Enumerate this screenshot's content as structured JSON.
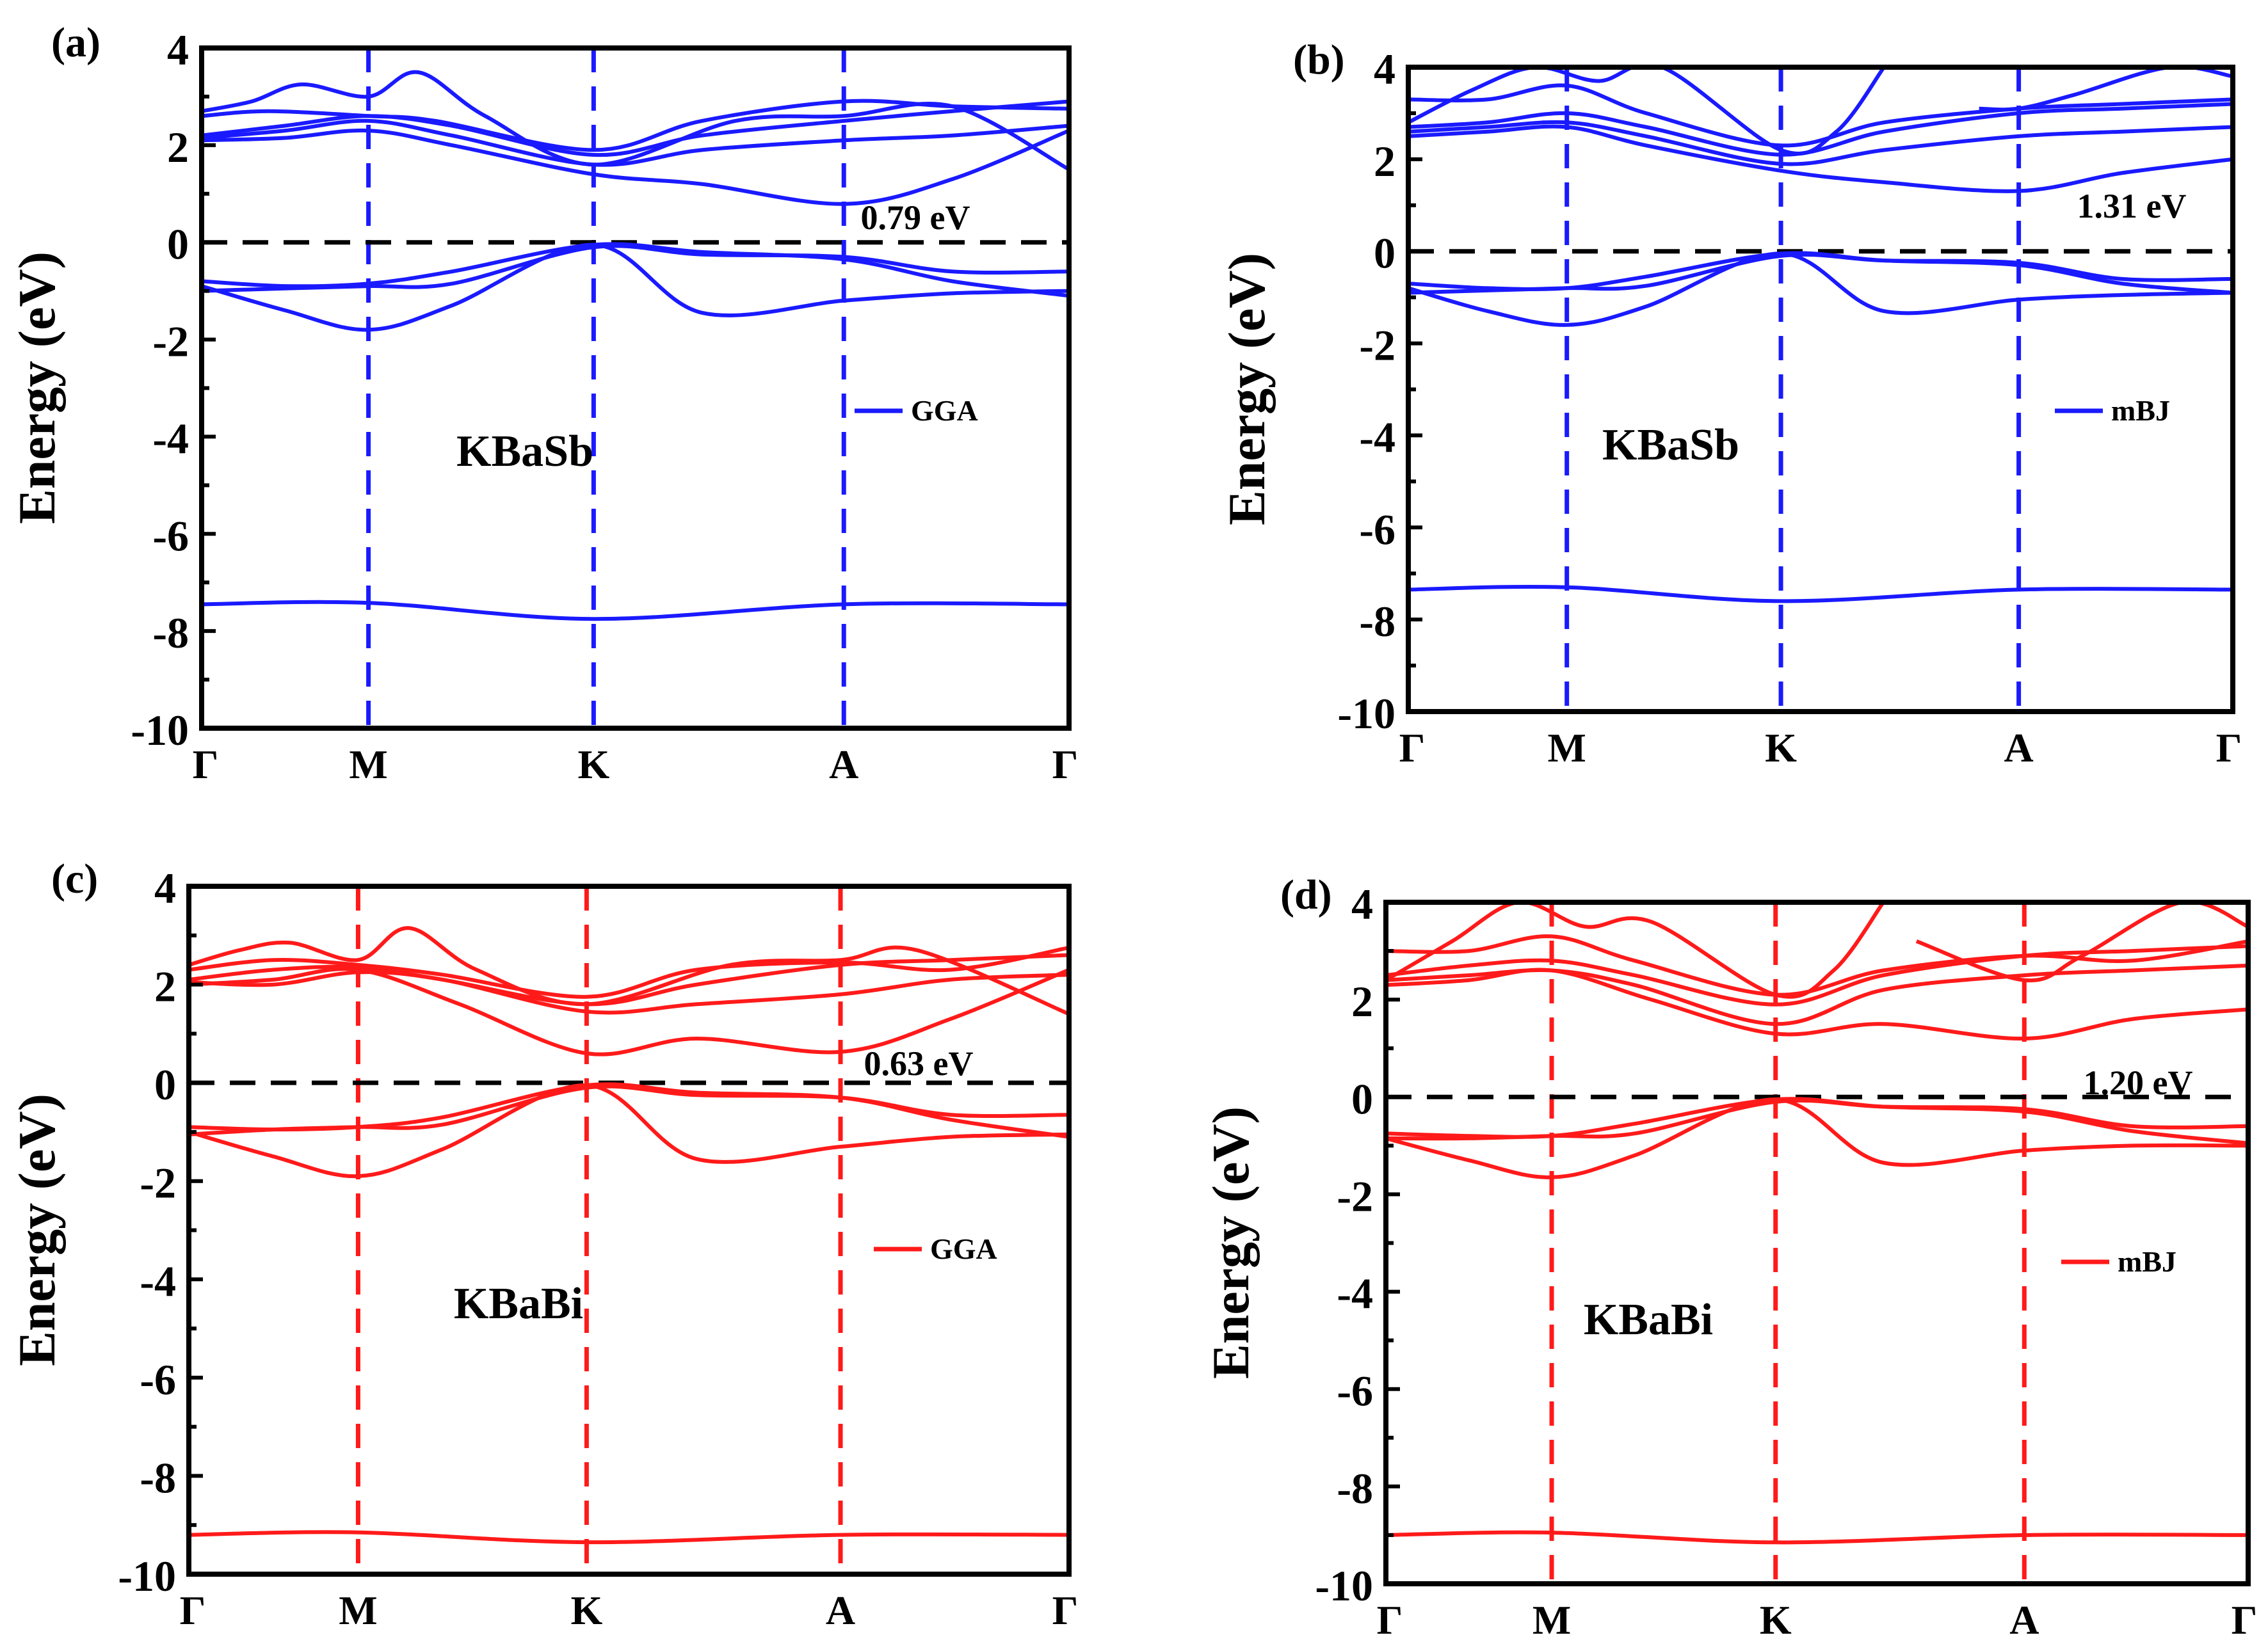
{
  "figure": {
    "description_free": true
  },
  "chart_data": [
    {
      "panel_label": "(a)",
      "type": "line",
      "material": "KBaSb",
      "method": "GGA",
      "gap_label": "0.79 eV",
      "ylabel": "Energy (eV)",
      "xlabel": "",
      "color": "#1a1aff",
      "ylim": [
        -10,
        4
      ],
      "yticks": [
        "4",
        "2",
        "0",
        "-2",
        "-4",
        "-6",
        "-8",
        "-10"
      ],
      "kpoints": [
        "Γ",
        "M",
        "K",
        "A",
        "Γ"
      ],
      "kpos": [
        0,
        1,
        2.35,
        3.85,
        5.2
      ],
      "fermi_level": 0,
      "series": [
        {
          "name": "c1",
          "x": [
            0,
            0.5,
            1,
            1.5,
            2.35,
            3,
            3.85,
            4.5,
            5.2
          ],
          "y": [
            2.1,
            2.15,
            2.3,
            2,
            1.4,
            1.2,
            0.79,
            1.3,
            2.3
          ]
        },
        {
          "name": "c2",
          "x": [
            0,
            0.5,
            1,
            1.5,
            2.35,
            3,
            3.85,
            4.5,
            5.2
          ],
          "y": [
            2.15,
            2.3,
            2.5,
            2.2,
            1.6,
            1.9,
            2.1,
            2.2,
            2.4
          ]
        },
        {
          "name": "c3",
          "x": [
            0,
            0.5,
            1,
            1.5,
            2.35,
            3,
            3.85,
            4.5,
            5.2
          ],
          "y": [
            2.2,
            2.4,
            2.6,
            2.4,
            1.8,
            2.2,
            2.5,
            2.7,
            2.9
          ]
        },
        {
          "name": "c4",
          "x": [
            0,
            0.4,
            1,
            1.4,
            2.35,
            3,
            3.85,
            4.5,
            5.2
          ],
          "y": [
            2.6,
            2.7,
            2.6,
            2.5,
            1.9,
            2.5,
            2.9,
            2.8,
            2.75
          ]
        },
        {
          "name": "c5",
          "x": [
            0,
            0.3,
            0.6,
            1,
            1.3,
            1.7,
            2.35,
            3.2,
            3.85,
            4.5,
            5.2
          ],
          "y": [
            2.7,
            2.9,
            3.25,
            3.0,
            3.5,
            2.6,
            1.6,
            2.5,
            2.6,
            2.8,
            1.5
          ]
        },
        {
          "name": "v1",
          "x": [
            0,
            0.5,
            1,
            1.5,
            2.35,
            3,
            3.85,
            4.5,
            5.2
          ],
          "y": [
            -0.8,
            -0.9,
            -0.85,
            -0.6,
            -0.05,
            -0.2,
            -0.35,
            -0.8,
            -1.1
          ]
        },
        {
          "name": "v2",
          "x": [
            0,
            0.5,
            1,
            1.5,
            2.35,
            3,
            3.85,
            4.5,
            5.2
          ],
          "y": [
            -0.9,
            -1.4,
            -1.8,
            -1.3,
            -0.05,
            -1.45,
            -1.2,
            -1.05,
            -1.0
          ]
        },
        {
          "name": "v3",
          "x": [
            0,
            0.5,
            1,
            1.5,
            2.35,
            3,
            3.85,
            4.5,
            5.2
          ],
          "y": [
            -1.0,
            -0.95,
            -0.9,
            -0.85,
            -0.1,
            -0.25,
            -0.3,
            -0.6,
            -0.6
          ]
        },
        {
          "name": "s1",
          "x": [
            0,
            1,
            2.35,
            3.85,
            5.2
          ],
          "y": [
            -7.45,
            -7.42,
            -7.75,
            -7.45,
            -7.45
          ]
        }
      ]
    },
    {
      "panel_label": "(b)",
      "type": "line",
      "material": "KBaSb",
      "method": "mBJ",
      "gap_label": "1.31 eV",
      "ylabel": "Energy (eV)",
      "xlabel": "",
      "color": "#1a1aff",
      "ylim": [
        -10,
        4
      ],
      "yticks": [
        "4",
        "2",
        "0",
        "-2",
        "-4",
        "-6",
        "-8",
        "-10"
      ],
      "kpoints": [
        "Γ",
        "M",
        "K",
        "A",
        "Γ"
      ],
      "kpos": [
        0,
        1,
        2.35,
        3.85,
        5.2
      ],
      "fermi_level": 0,
      "series": [
        {
          "name": "c1",
          "x": [
            0,
            0.5,
            1,
            1.5,
            2.35,
            3,
            3.85,
            4.5,
            5.2
          ],
          "y": [
            2.5,
            2.6,
            2.7,
            2.3,
            1.75,
            1.5,
            1.31,
            1.7,
            2.0
          ]
        },
        {
          "name": "c2",
          "x": [
            0,
            0.5,
            1,
            1.5,
            2.35,
            3,
            3.85,
            4.5,
            5.2
          ],
          "y": [
            2.6,
            2.7,
            2.8,
            2.5,
            1.9,
            2.2,
            2.5,
            2.6,
            2.7
          ]
        },
        {
          "name": "c3",
          "x": [
            0,
            0.5,
            1,
            1.5,
            2.35,
            3,
            3.85,
            4.5,
            5.2
          ],
          "y": [
            2.7,
            2.8,
            3.0,
            2.7,
            2.1,
            2.6,
            3.0,
            3.1,
            3.2
          ]
        },
        {
          "name": "c4",
          "x": [
            0,
            0.5,
            1,
            1.5,
            2.35,
            3,
            3.85,
            4.5,
            5.2
          ],
          "y": [
            3.3,
            3.3,
            3.6,
            3.0,
            2.3,
            2.8,
            3.1,
            3.2,
            3.3
          ]
        },
        {
          "name": "c5",
          "x": [
            0,
            0.4,
            0.8,
            1.2,
            1.6,
            2.35,
            2.7,
            3.0
          ],
          "y": [
            2.8,
            3.5,
            4.0,
            3.7,
            4.0,
            2.2,
            2.6,
            4.0
          ]
        },
        {
          "name": "c6",
          "x": [
            3.6,
            3.85,
            4.2,
            4.8,
            5.2
          ],
          "y": [
            3.1,
            3.1,
            3.4,
            4.0,
            3.8
          ]
        },
        {
          "name": "v1",
          "x": [
            0,
            0.5,
            1,
            1.5,
            2.35,
            3,
            3.85,
            4.5,
            5.2
          ],
          "y": [
            -0.7,
            -0.8,
            -0.8,
            -0.55,
            -0.05,
            -0.2,
            -0.3,
            -0.7,
            -0.9
          ]
        },
        {
          "name": "v2",
          "x": [
            0,
            0.5,
            1,
            1.5,
            2.35,
            3,
            3.85,
            4.5,
            5.2
          ],
          "y": [
            -0.8,
            -1.3,
            -1.6,
            -1.2,
            -0.05,
            -1.3,
            -1.05,
            -0.95,
            -0.9
          ]
        },
        {
          "name": "v3",
          "x": [
            0,
            0.5,
            1,
            1.5,
            2.35,
            3,
            3.85,
            4.5,
            5.2
          ],
          "y": [
            -0.9,
            -0.85,
            -0.8,
            -0.75,
            -0.1,
            -0.2,
            -0.25,
            -0.6,
            -0.6
          ]
        },
        {
          "name": "s1",
          "x": [
            0,
            1,
            2.35,
            3.85,
            5.2
          ],
          "y": [
            -7.35,
            -7.3,
            -7.6,
            -7.35,
            -7.35
          ]
        }
      ]
    },
    {
      "panel_label": "(c)",
      "type": "line",
      "material": "KBaBi",
      "method": "GGA",
      "gap_label": "0.63 eV",
      "ylabel": "Energy (eV)",
      "xlabel": "",
      "color": "#ff1a1a",
      "ylim": [
        -10,
        4
      ],
      "yticks": [
        "4",
        "2",
        "0",
        "-2",
        "-4",
        "-6",
        "-8",
        "-10"
      ],
      "kpoints": [
        "Γ",
        "M",
        "K",
        "A",
        "Γ"
      ],
      "kpos": [
        0,
        1,
        2.35,
        3.85,
        5.2
      ],
      "fermi_level": 0,
      "series": [
        {
          "name": "c1",
          "x": [
            0,
            0.5,
            1,
            1.6,
            2.35,
            3,
            3.85,
            4.5,
            5.2
          ],
          "y": [
            2.0,
            2.1,
            2.3,
            1.6,
            0.6,
            0.9,
            0.63,
            1.3,
            2.3
          ]
        },
        {
          "name": "c2",
          "x": [
            0,
            0.5,
            1,
            1.5,
            2.35,
            3,
            3.85,
            4.5,
            5.2
          ],
          "y": [
            2.05,
            2.0,
            2.25,
            2.1,
            1.45,
            1.6,
            1.8,
            2.1,
            2.2
          ]
        },
        {
          "name": "c3",
          "x": [
            0,
            0.5,
            1,
            1.5,
            2.35,
            3,
            3.85,
            4.5,
            5.2
          ],
          "y": [
            2.1,
            2.3,
            2.35,
            2.1,
            1.6,
            2.0,
            2.4,
            2.5,
            2.6
          ]
        },
        {
          "name": "c4",
          "x": [
            0,
            0.5,
            1,
            1.5,
            2.35,
            3,
            3.85,
            4.5,
            5.2
          ],
          "y": [
            2.3,
            2.5,
            2.4,
            2.2,
            1.75,
            2.3,
            2.45,
            2.3,
            2.75
          ]
        },
        {
          "name": "c5",
          "x": [
            0,
            0.3,
            0.6,
            1,
            1.3,
            1.7,
            2.35,
            3.2,
            3.85,
            4.3,
            5.2
          ],
          "y": [
            2.4,
            2.7,
            2.85,
            2.5,
            3.15,
            2.3,
            1.6,
            2.4,
            2.5,
            2.7,
            1.4
          ]
        },
        {
          "name": "v1",
          "x": [
            0,
            0.5,
            1,
            1.5,
            2.35,
            3,
            3.85,
            4.5,
            5.2
          ],
          "y": [
            -0.9,
            -0.95,
            -0.9,
            -0.7,
            -0.05,
            -0.2,
            -0.3,
            -0.75,
            -1.1
          ]
        },
        {
          "name": "v2",
          "x": [
            0,
            0.5,
            1,
            1.5,
            2.35,
            3,
            3.85,
            4.5,
            5.2
          ],
          "y": [
            -1.0,
            -1.5,
            -1.9,
            -1.35,
            -0.05,
            -1.55,
            -1.3,
            -1.1,
            -1.05
          ]
        },
        {
          "name": "v3",
          "x": [
            0,
            0.5,
            1,
            1.5,
            2.35,
            3,
            3.85,
            4.5,
            5.2
          ],
          "y": [
            -1.05,
            -0.95,
            -0.9,
            -0.85,
            -0.1,
            -0.25,
            -0.3,
            -0.65,
            -0.65
          ]
        },
        {
          "name": "s1",
          "x": [
            0,
            1,
            2.35,
            3.85,
            5.2
          ],
          "y": [
            -9.2,
            -9.15,
            -9.35,
            -9.2,
            -9.2
          ]
        }
      ]
    },
    {
      "panel_label": "(d)",
      "type": "line",
      "material": "KBaBi",
      "method": "mBJ",
      "gap_label": "1.20 eV",
      "ylabel": "Energy (eV)",
      "xlabel": "",
      "color": "#ff1a1a",
      "ylim": [
        -10,
        4
      ],
      "yticks": [
        "4",
        "2",
        "0",
        "-2",
        "-4",
        "-6",
        "-8",
        "-10"
      ],
      "kpoints": [
        "Γ",
        "M",
        "K",
        "A",
        "Γ"
      ],
      "kpos": [
        0,
        1,
        2.35,
        3.85,
        5.2
      ],
      "fermi_level": 0,
      "series": [
        {
          "name": "c1",
          "x": [
            0,
            0.5,
            1,
            1.6,
            2.35,
            3,
            3.85,
            4.5,
            5.2
          ],
          "y": [
            2.3,
            2.4,
            2.6,
            2.0,
            1.3,
            1.5,
            1.2,
            1.6,
            1.8
          ]
        },
        {
          "name": "c2",
          "x": [
            0,
            0.5,
            1,
            1.5,
            2.35,
            3,
            3.85,
            4.5,
            5.2
          ],
          "y": [
            2.4,
            2.5,
            2.6,
            2.3,
            1.5,
            2.2,
            2.5,
            2.6,
            2.7
          ]
        },
        {
          "name": "c3",
          "x": [
            0,
            0.5,
            1,
            1.5,
            2.35,
            3,
            3.85,
            4.5,
            5.2
          ],
          "y": [
            2.5,
            2.7,
            2.8,
            2.5,
            1.9,
            2.5,
            2.9,
            3.0,
            3.1
          ]
        },
        {
          "name": "c4",
          "x": [
            0,
            0.5,
            1,
            1.5,
            2.35,
            3,
            3.85,
            4.5,
            5.2
          ],
          "y": [
            3.0,
            3.0,
            3.3,
            2.8,
            2.1,
            2.6,
            2.9,
            2.8,
            3.2
          ]
        },
        {
          "name": "c5",
          "x": [
            0,
            0.4,
            0.8,
            1.2,
            1.6,
            2.35,
            2.7,
            3.0
          ],
          "y": [
            2.4,
            3.2,
            4.0,
            3.5,
            3.6,
            2.1,
            2.6,
            4.0
          ]
        },
        {
          "name": "c6",
          "x": [
            3.2,
            3.85,
            4.2,
            4.8,
            5.2
          ],
          "y": [
            3.2,
            2.4,
            2.9,
            4.0,
            3.5
          ]
        },
        {
          "name": "v1",
          "x": [
            0,
            0.5,
            1,
            1.5,
            2.35,
            3,
            3.85,
            4.5,
            5.2
          ],
          "y": [
            -0.75,
            -0.8,
            -0.8,
            -0.55,
            -0.05,
            -0.2,
            -0.3,
            -0.7,
            -0.95
          ]
        },
        {
          "name": "v2",
          "x": [
            0,
            0.5,
            1,
            1.5,
            2.35,
            3,
            3.85,
            4.5,
            5.2
          ],
          "y": [
            -0.85,
            -1.3,
            -1.65,
            -1.2,
            -0.05,
            -1.35,
            -1.1,
            -1.0,
            -1.0
          ]
        },
        {
          "name": "v3",
          "x": [
            0,
            0.5,
            1,
            1.5,
            2.35,
            3,
            3.85,
            4.5,
            5.2
          ],
          "y": [
            -0.85,
            -0.85,
            -0.8,
            -0.75,
            -0.1,
            -0.2,
            -0.25,
            -0.6,
            -0.6
          ]
        },
        {
          "name": "s1",
          "x": [
            0,
            1,
            2.35,
            3.85,
            5.2
          ],
          "y": [
            -9.0,
            -8.95,
            -9.15,
            -9.0,
            -9.0
          ]
        }
      ]
    }
  ]
}
